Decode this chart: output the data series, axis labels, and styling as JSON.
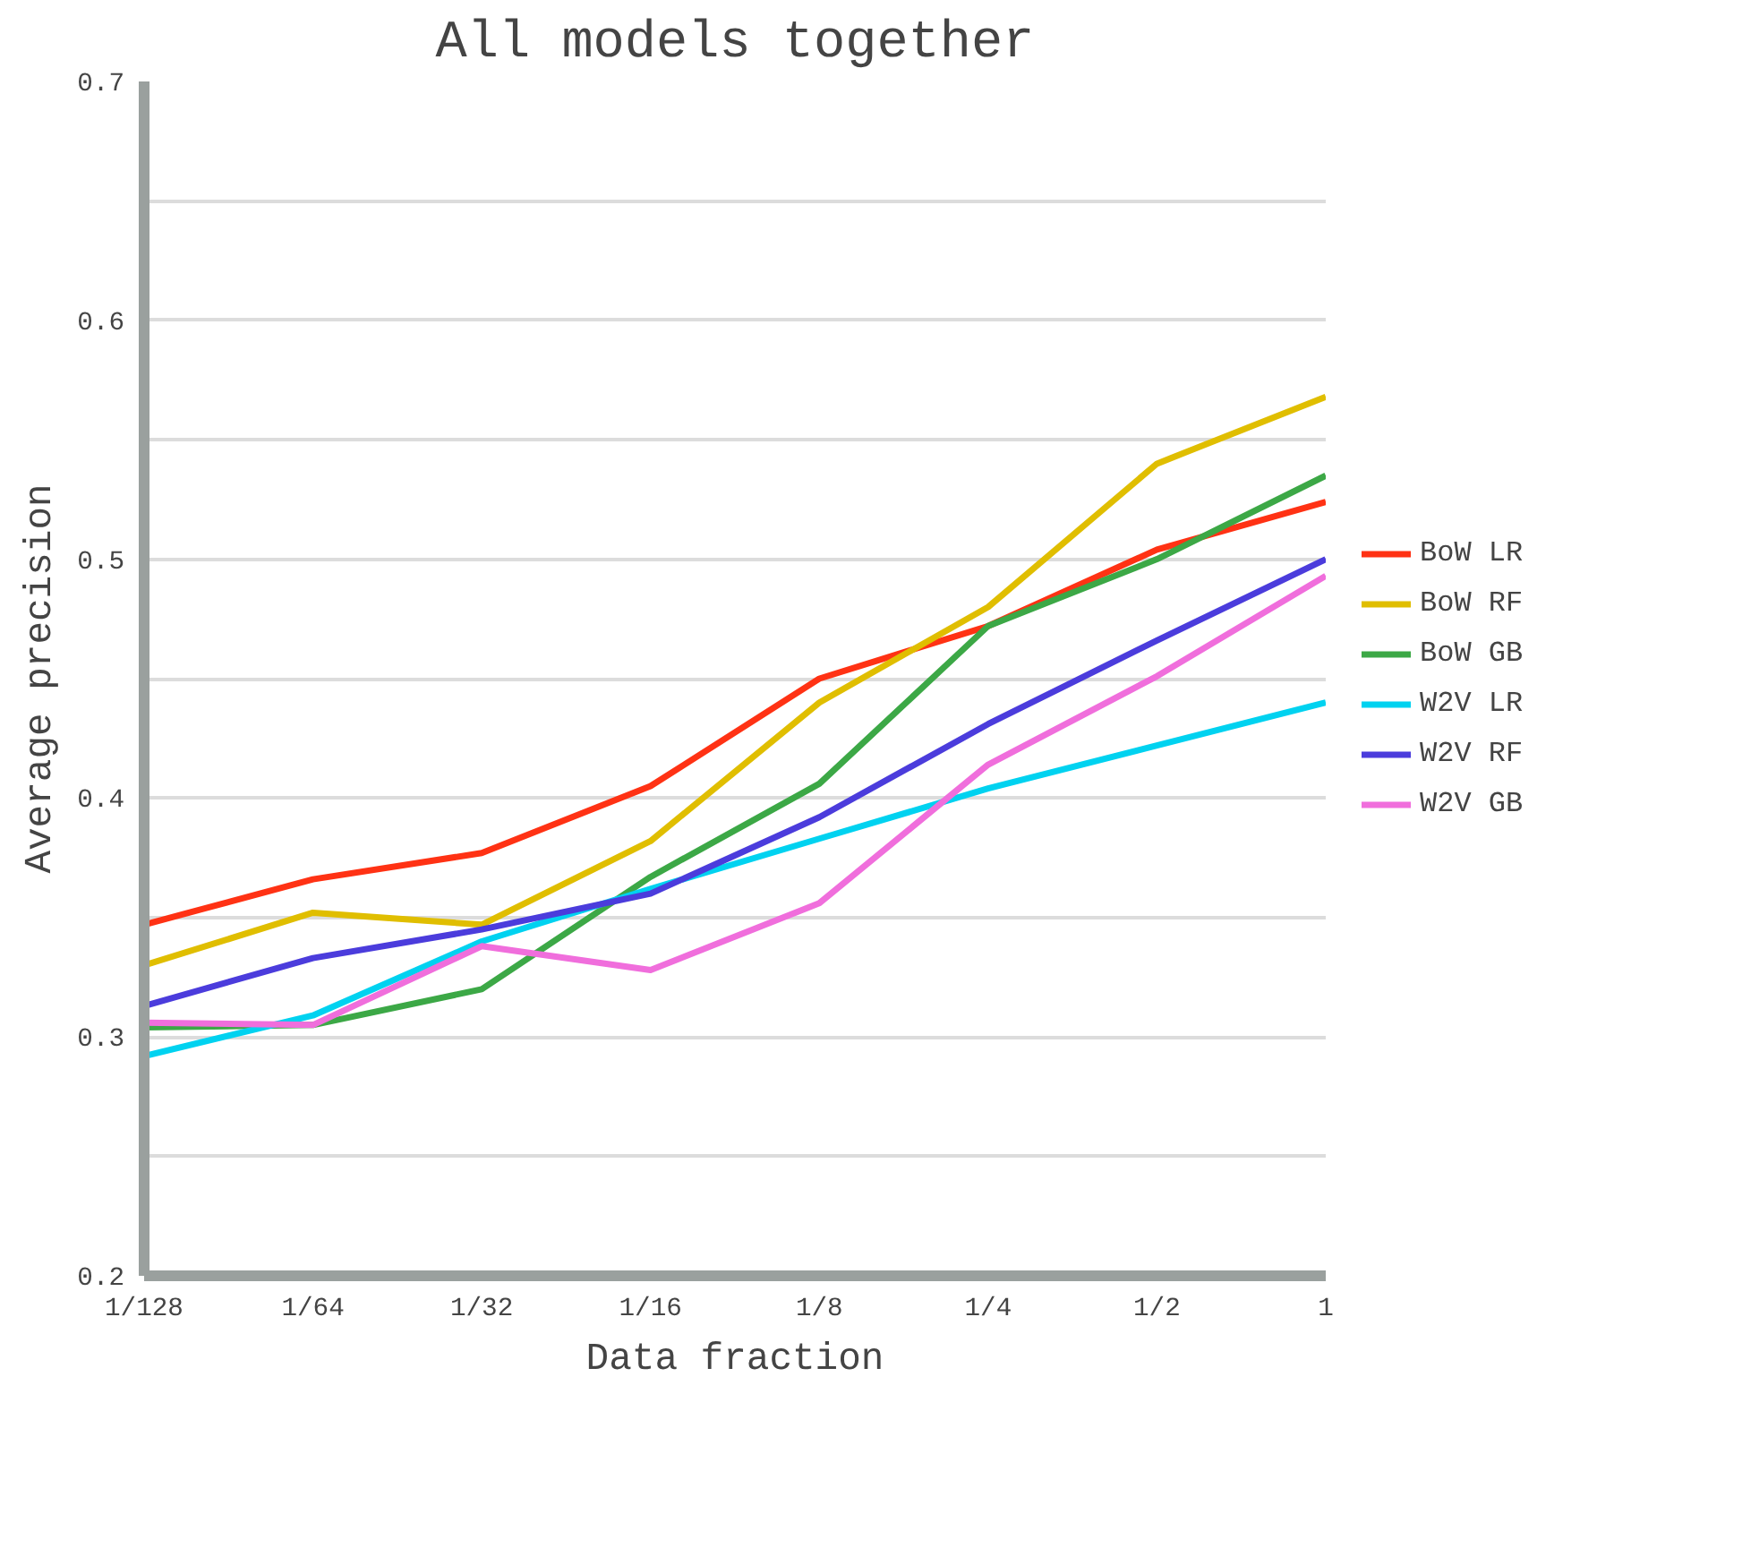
{
  "chart_data": {
    "type": "line",
    "title": "All models together",
    "xlabel": "Data fraction",
    "ylabel": "Average precision",
    "categories": [
      "1/128",
      "1/64",
      "1/32",
      "1/16",
      "1/8",
      "1/4",
      "1/2",
      "1"
    ],
    "ylim": [
      0.2,
      0.7
    ],
    "yticks": [
      0.2,
      {
        "value": 0.25,
        "label": null
      },
      0.3,
      {
        "value": 0.35,
        "label": null
      },
      0.4,
      {
        "value": 0.45,
        "label": null
      },
      0.5,
      {
        "value": 0.55,
        "label": null
      },
      0.6,
      {
        "value": 0.65,
        "label": null
      },
      0.7
    ],
    "grid": "y",
    "legend": "right",
    "marker": "none",
    "line_style": "solid",
    "series": [
      {
        "name": "BoW LR",
        "color": "#ff3214",
        "values": [
          0.347,
          0.366,
          0.377,
          0.405,
          0.45,
          0.472,
          0.504,
          0.524
        ]
      },
      {
        "name": "BoW RF",
        "color": "#e0be00",
        "values": [
          0.33,
          0.352,
          0.347,
          0.382,
          0.44,
          0.48,
          0.54,
          0.568
        ]
      },
      {
        "name": "BoW GB",
        "color": "#3ca846",
        "values": [
          0.304,
          0.305,
          0.32,
          0.367,
          0.406,
          0.472,
          0.5,
          0.535
        ]
      },
      {
        "name": "W2V LR",
        "color": "#00d2f0",
        "values": [
          0.292,
          0.309,
          0.34,
          0.362,
          0.383,
          0.404,
          0.422,
          0.44
        ]
      },
      {
        "name": "W2V RF",
        "color": "#4b3cdc",
        "values": [
          0.313,
          0.333,
          0.345,
          0.36,
          0.392,
          0.431,
          0.466,
          0.5
        ]
      },
      {
        "name": "W2V GB",
        "color": "#f06edc",
        "values": [
          0.306,
          0.305,
          0.338,
          0.328,
          0.356,
          0.414,
          0.451,
          0.493
        ]
      }
    ]
  }
}
